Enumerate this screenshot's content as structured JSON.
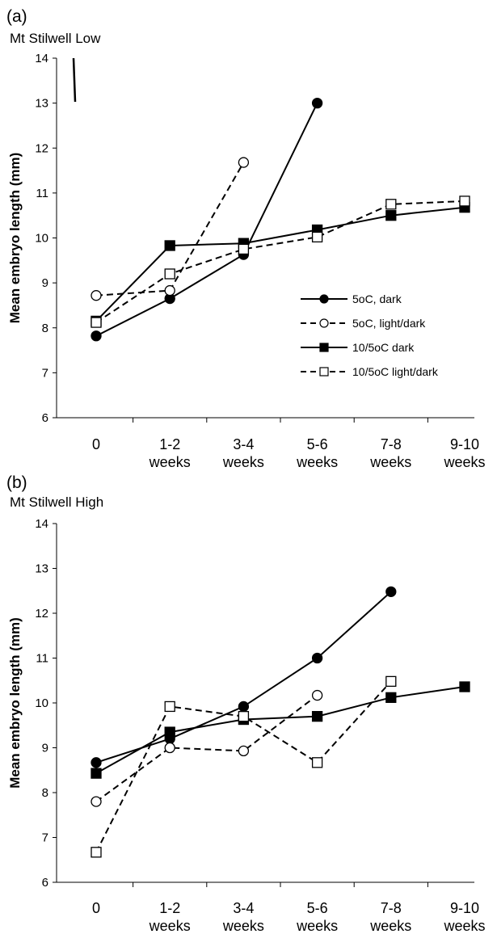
{
  "chart_data": [
    {
      "type": "line",
      "panel_label": "(a)",
      "title": "Mt Stilwell Low",
      "xlabel": "",
      "ylabel": "Mean embryo length (mm)",
      "categories": [
        "0",
        "1-2 weeks",
        "3-4 weeks",
        "5-6 weeks",
        "7-8 weeks",
        "9-10 weeks"
      ],
      "ylim": [
        6,
        14
      ],
      "yticks": [
        "6",
        "7",
        "8",
        "9",
        "10",
        "11",
        "12",
        "13",
        "14"
      ],
      "grid": false,
      "legend_placement": "right",
      "series": [
        {
          "name": "5oC, dark",
          "marker": "circle",
          "filled": true,
          "dashed": false,
          "values": [
            7.82,
            8.65,
            9.63,
            13.0,
            null,
            null
          ]
        },
        {
          "name": "5oC, light/dark",
          "marker": "circle",
          "filled": false,
          "dashed": true,
          "values": [
            8.72,
            8.83,
            11.68,
            null,
            null,
            null
          ]
        },
        {
          "name": "10/5oC dark",
          "marker": "square",
          "filled": true,
          "dashed": false,
          "values": [
            8.15,
            9.83,
            9.88,
            10.18,
            10.5,
            10.68
          ]
        },
        {
          "name": "10/5oC light/dark",
          "marker": "square",
          "filled": false,
          "dashed": true,
          "values": [
            8.12,
            9.2,
            9.75,
            10.02,
            10.75,
            10.82
          ]
        }
      ]
    },
    {
      "type": "line",
      "panel_label": "(b)",
      "title": "Mt Stilwell High",
      "xlabel": "",
      "ylabel": "Mean embryo length (mm)",
      "categories": [
        "0",
        "1-2 weeks",
        "3-4 weeks",
        "5-6 weeks",
        "7-8 weeks",
        "9-10 weeks"
      ],
      "ylim": [
        6,
        14
      ],
      "yticks": [
        "6",
        "7",
        "8",
        "9",
        "10",
        "11",
        "12",
        "13",
        "14"
      ],
      "grid": false,
      "series": [
        {
          "marker": "circle",
          "filled": true,
          "dashed": false,
          "values": [
            8.67,
            9.2,
            9.92,
            11.0,
            12.48,
            null
          ]
        },
        {
          "marker": "circle",
          "filled": false,
          "dashed": true,
          "values": [
            7.8,
            9.0,
            8.93,
            10.17,
            null,
            null
          ]
        },
        {
          "marker": "square",
          "filled": true,
          "dashed": false,
          "values": [
            8.43,
            9.35,
            9.63,
            9.7,
            10.12,
            10.36
          ]
        },
        {
          "marker": "square",
          "filled": false,
          "dashed": true,
          "values": [
            6.67,
            9.92,
            9.7,
            8.67,
            10.48,
            null
          ]
        }
      ]
    }
  ]
}
